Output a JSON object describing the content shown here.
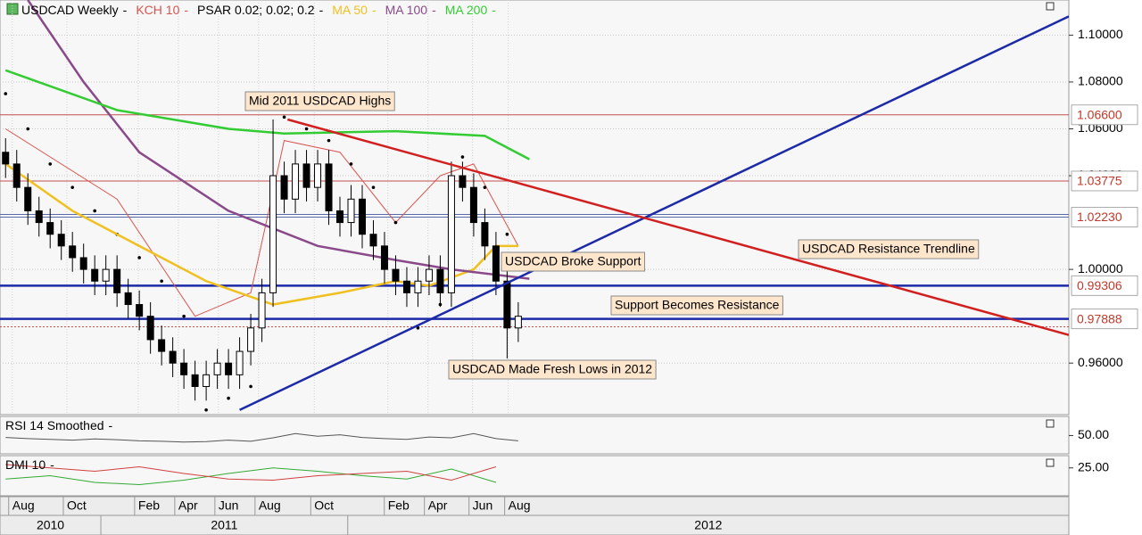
{
  "chart_data": {
    "type": "candlestick",
    "title": "USDCAD Weekly",
    "legend_separator": "-",
    "ohlc": {
      "open": [
        1.05,
        1.045,
        1.035,
        1.025,
        1.02,
        1.015,
        1.01,
        1.005,
        1.0,
        0.995,
        1.0,
        0.99,
        0.985,
        0.98,
        0.97,
        0.965,
        0.96,
        0.955,
        0.95,
        0.955,
        0.96,
        0.955,
        0.965,
        0.975,
        0.99,
        1.04,
        1.03,
        1.045,
        1.035,
        1.045,
        1.025,
        1.02,
        1.03,
        1.015,
        1.01,
        1.0,
        0.995,
        0.99,
        0.995,
        1.0,
        0.99,
        1.04,
        1.035,
        1.02,
        1.01,
        0.995,
        0.975
      ],
      "high": [
        1.056,
        1.051,
        1.041,
        1.031,
        1.026,
        1.021,
        1.016,
        1.011,
        1.006,
        1.006,
        1.006,
        0.996,
        0.991,
        0.986,
        0.976,
        0.971,
        0.966,
        0.961,
        0.961,
        0.966,
        0.966,
        0.971,
        0.981,
        0.996,
        1.064,
        1.046,
        1.051,
        1.051,
        1.051,
        1.051,
        1.031,
        1.036,
        1.036,
        1.021,
        1.016,
        1.006,
        1.001,
        1.001,
        1.006,
        1.006,
        1.046,
        1.046,
        1.041,
        1.026,
        1.016,
        1.001,
        0.986
      ],
      "low": [
        1.039,
        1.029,
        1.019,
        1.014,
        1.009,
        1.004,
        0.999,
        0.994,
        0.989,
        0.989,
        0.984,
        0.979,
        0.974,
        0.964,
        0.959,
        0.954,
        0.949,
        0.944,
        0.944,
        0.949,
        0.949,
        0.949,
        0.959,
        0.969,
        0.984,
        1.024,
        1.024,
        1.029,
        1.029,
        1.019,
        1.014,
        1.014,
        1.009,
        1.004,
        0.994,
        0.989,
        0.984,
        0.984,
        0.989,
        0.984,
        0.984,
        1.029,
        1.014,
        1.004,
        0.989,
        0.962,
        0.969
      ],
      "close": [
        1.045,
        1.035,
        1.025,
        1.02,
        1.015,
        1.01,
        1.005,
        1.0,
        0.995,
        1.0,
        0.99,
        0.985,
        0.98,
        0.97,
        0.965,
        0.96,
        0.955,
        0.95,
        0.955,
        0.96,
        0.955,
        0.965,
        0.975,
        0.99,
        1.04,
        1.03,
        1.045,
        1.035,
        1.045,
        1.025,
        1.02,
        1.03,
        1.015,
        1.01,
        1.0,
        0.995,
        0.99,
        0.995,
        1.0,
        0.99,
        1.04,
        1.035,
        1.02,
        1.01,
        0.995,
        0.975,
        0.98
      ]
    },
    "series": [
      {
        "name": "KCH 10",
        "color": "#d9534f",
        "style": "line",
        "x": [
          0,
          10,
          17,
          22,
          25,
          30,
          35,
          39,
          42,
          46
        ],
        "values": [
          1.06,
          1.03,
          0.98,
          0.99,
          1.055,
          1.05,
          1.02,
          1.04,
          1.045,
          1.01
        ]
      },
      {
        "name": "PSAR 0.02; 0.02; 0.2",
        "color": "#000000",
        "style": "dots",
        "x": [
          0,
          2,
          4,
          6,
          8,
          10,
          12,
          14,
          16,
          18,
          20,
          22,
          25,
          27,
          29,
          31,
          33,
          35,
          37,
          39,
          41,
          43,
          45
        ],
        "values": [
          1.075,
          1.06,
          1.045,
          1.035,
          1.025,
          1.015,
          1.005,
          0.995,
          0.98,
          0.94,
          0.945,
          0.95,
          1.065,
          1.06,
          1.055,
          1.045,
          1.035,
          1.02,
          0.975,
          0.985,
          1.048,
          1.035,
          1.015
        ]
      },
      {
        "name": "MA 50",
        "color": "#f0c020",
        "style": "line",
        "x": [
          0,
          6,
          10,
          18,
          24,
          30,
          35,
          38,
          42,
          44,
          46
        ],
        "values": [
          1.045,
          1.025,
          1.015,
          0.995,
          0.985,
          0.99,
          0.995,
          0.993,
          1.0,
          1.01,
          1.01
        ]
      },
      {
        "name": "MA 100",
        "color": "#8a4a8a",
        "style": "line",
        "x": [
          2,
          7,
          12,
          20,
          28,
          35,
          40,
          47
        ],
        "values": [
          1.115,
          1.08,
          1.05,
          1.025,
          1.01,
          1.004,
          1.0,
          0.996
        ]
      },
      {
        "name": "MA 200",
        "color": "#33cc33",
        "style": "line",
        "x": [
          0,
          10,
          20,
          25,
          35,
          43,
          47
        ],
        "values": [
          1.085,
          1.068,
          1.06,
          1.058,
          1.059,
          1.057,
          1.047
        ]
      }
    ],
    "trendlines": [
      {
        "color": "#1c2aa8",
        "x": [
          21,
          95.4
        ],
        "values": [
          0.94,
          1.108
        ]
      },
      {
        "color": "#d02020",
        "x": [
          25.3,
          95.4
        ],
        "values": [
          1.064,
          0.972
        ]
      }
    ],
    "levels": [
      {
        "value": 1.066,
        "label": "1.06600",
        "color": "#c0504d",
        "style": "thin"
      },
      {
        "value": 1.03775,
        "label": "1.03775",
        "color": "#c0504d",
        "style": "thin"
      },
      {
        "value": 1.0223,
        "label": "1.02230",
        "color": "#5a6aa8",
        "style": "thin"
      },
      {
        "value": 0.99306,
        "label": "0.99306",
        "color": "#1c2aa8",
        "style": "thick"
      },
      {
        "value": 0.97888,
        "label": "0.97888",
        "color": "#1c2aa8",
        "style": "thick"
      }
    ],
    "current_price": {
      "value": 0.9755,
      "color": "#c0504d"
    },
    "annotations": [
      "Mid 2011 USDCAD Highs",
      "USDCAD Broke Support",
      "USDCAD Resistance Trendline",
      "Support Becomes Resistance",
      "USDCAD Made Fresh Lows in 2012"
    ],
    "ylim": [
      0.938,
      1.115
    ],
    "yticks": [
      {
        "value": 1.1,
        "label": "1.10000"
      },
      {
        "value": 1.08,
        "label": "1.08000"
      },
      {
        "value": 1.06,
        "label": "1.06000"
      },
      {
        "value": 1.04,
        "label": "1.04000"
      },
      {
        "value": 1.0,
        "label": "1.00000"
      },
      {
        "value": 0.96,
        "label": "0.96000"
      }
    ],
    "xlim": [
      -0.5,
      95.4
    ],
    "xticks": [
      {
        "value": 0.6,
        "label": "Aug"
      },
      {
        "value": 5.5,
        "label": "Oct"
      },
      {
        "value": 11.9,
        "label": "Feb"
      },
      {
        "value": 15.5,
        "label": "Apr"
      },
      {
        "value": 19.1,
        "label": "Jun"
      },
      {
        "value": 22.7,
        "label": "Aug"
      },
      {
        "value": 27.7,
        "label": "Oct"
      },
      {
        "value": 34.3,
        "label": "Feb"
      },
      {
        "value": 37.9,
        "label": "Apr"
      },
      {
        "value": 41.9,
        "label": "Jun"
      },
      {
        "value": 45.1,
        "label": "Aug"
      }
    ],
    "year_ticks": [
      {
        "value": -0.5,
        "label": "2010"
      },
      {
        "value": 8.55,
        "label": "2011"
      },
      {
        "value": 30.7,
        "label": "2012"
      }
    ],
    "grid": true,
    "panels": [
      {
        "title": "RSI 14 Smoothed",
        "ylim": [
          2,
          100
        ],
        "yticks": [
          {
            "value": 50,
            "label": "50.00"
          }
        ],
        "series": [
          {
            "color": "#555555",
            "x": [
              0,
              2,
              4,
              6,
              8,
              10,
              12,
              14,
              16,
              18,
              20,
              22,
              24,
              26,
              28,
              30,
              32,
              34,
              36,
              38,
              40,
              42,
              44,
              46
            ],
            "values": [
              45,
              42,
              40,
              38,
              41,
              39,
              36,
              35,
              33,
              34,
              38,
              35,
              44,
              55,
              48,
              52,
              45,
              42,
              40,
              46,
              44,
              55,
              42,
              36
            ]
          }
        ]
      },
      {
        "title": "DMI 10",
        "ylim": [
          0,
          36
        ],
        "yticks": [
          {
            "value": 25,
            "label": "25.00"
          }
        ],
        "series": [
          {
            "color": "#33aa33",
            "x": [
              0,
              4,
              8,
              12,
              16,
              20,
              24,
              28,
              32,
              36,
              40,
              44
            ],
            "values": [
              15,
              18,
              12,
              10,
              14,
              20,
              25,
              22,
              18,
              15,
              24,
              12
            ]
          },
          {
            "color": "#d04040",
            "x": [
              0,
              4,
              8,
              12,
              16,
              20,
              24,
              28,
              32,
              36,
              40,
              44
            ],
            "values": [
              28,
              25,
              22,
              26,
              20,
              15,
              14,
              18,
              20,
              22,
              14,
              26
            ]
          }
        ]
      }
    ]
  }
}
